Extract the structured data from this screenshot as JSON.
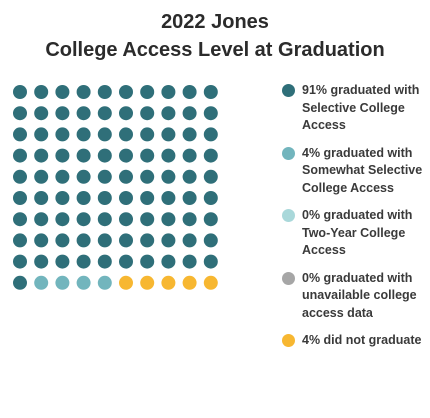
{
  "title_lines": [
    "2022 Jones",
    "College Access Level at Graduation"
  ],
  "chart_data": {
    "type": "waffle",
    "grid": {
      "rows": 10,
      "cols": 10
    },
    "total_units": 100,
    "categories": [
      {
        "label": "91% graduated with Selective College Access",
        "percent": 91,
        "units": 91,
        "color": "#2f6f79"
      },
      {
        "label": "4% graduated with Somewhat Selective College Access",
        "percent": 4,
        "units": 4,
        "color": "#72b5bd"
      },
      {
        "label": "0% graduated with Two-Year College Access",
        "percent": 0,
        "units": 0,
        "color": "#a9d8da"
      },
      {
        "label": "0% graduated with unavailable college access data",
        "percent": 0,
        "units": 0,
        "color": "#a6a6a6"
      },
      {
        "label": "4% did not graduate",
        "percent": 4,
        "units": 5,
        "color": "#f7b731"
      }
    ],
    "legend_position": "right"
  }
}
